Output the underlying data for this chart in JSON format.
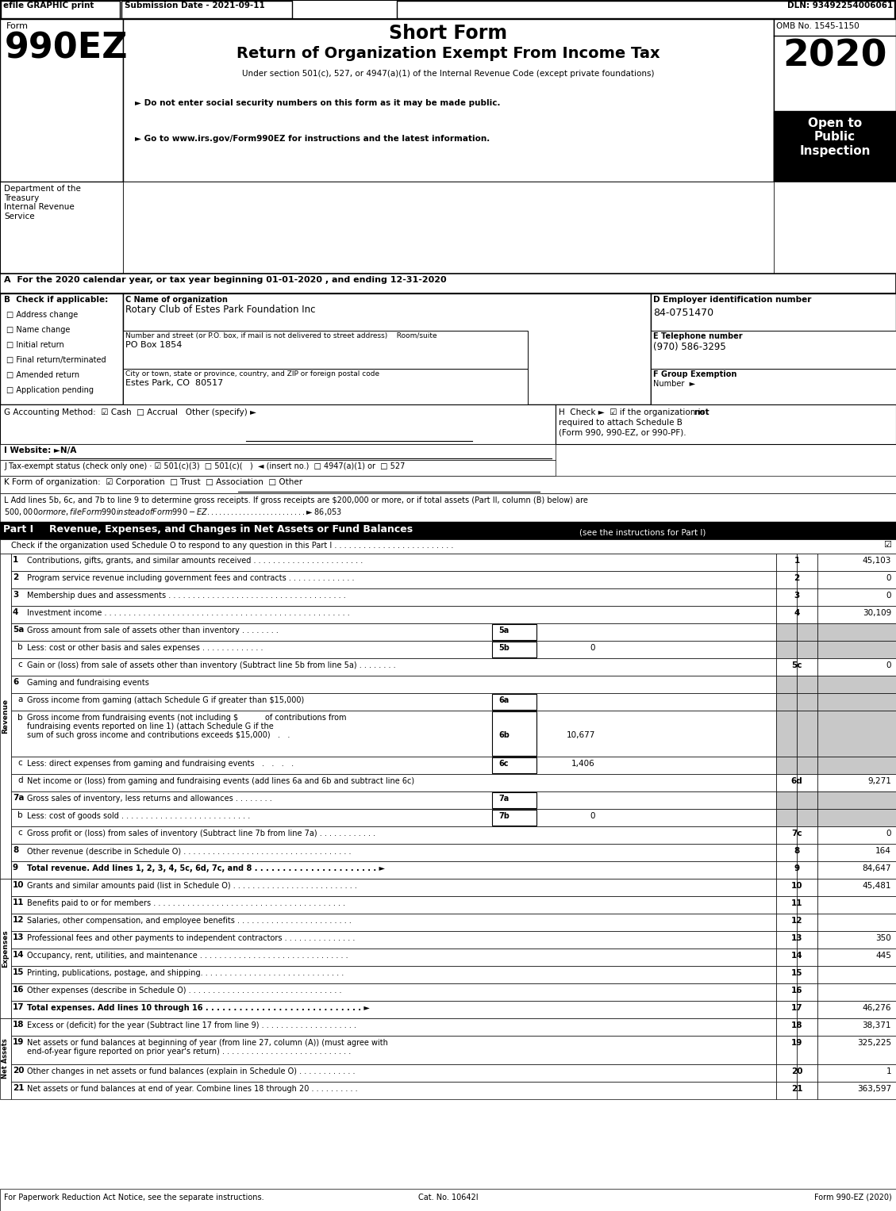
{
  "header_bar": {
    "efile_text": "efile GRAPHIC print",
    "submission_text": "Submission Date - 2021-09-11",
    "dln_text": "DLN: 93492254006061"
  },
  "form_title": {
    "form_label": "Form",
    "form_number": "990EZ",
    "short_form": "Short Form",
    "return_title": "Return of Organization Exempt From Income Tax",
    "under_section": "Under section 501(c), 527, or 4947(a)(1) of the Internal Revenue Code (except private foundations)",
    "bullet1": "► Do not enter social security numbers on this form as it may be made public.",
    "bullet2": "► Go to www.irs.gov/Form990EZ for instructions and the latest information.",
    "year": "2020",
    "omb": "OMB No. 1545-1150",
    "open_to": "Open to\nPublic\nInspection"
  },
  "dept_info": {
    "dept": "Department of the\nTreasury\nInternal Revenue\nService"
  },
  "section_a": {
    "text": "A  For the 2020 calendar year, or tax year beginning 01-01-2020 , and ending 12-31-2020"
  },
  "section_b": {
    "label": "B  Check if applicable:",
    "options": [
      "Address change",
      "Name change",
      "Initial return",
      "Final return/terminated",
      "Amended return",
      "Application pending"
    ]
  },
  "section_c": {
    "label": "C Name of organization",
    "org_name": "Rotary Club of Estes Park Foundation Inc",
    "street_label": "Number and street (or P.O. box, if mail is not delivered to street address)    Room/suite",
    "street": "PO Box 1854",
    "city_label": "City or town, state or province, country, and ZIP or foreign postal code",
    "city": "Estes Park, CO  80517"
  },
  "section_d": {
    "label": "D Employer identification number",
    "ein": "84-0751470"
  },
  "section_e": {
    "label": "E Telephone number",
    "phone": "(970) 586-3295"
  },
  "section_f": {
    "label": "F Group Exemption",
    "label2": "Number  ►"
  },
  "section_g": {
    "text": "G Accounting Method:  ☑ Cash  □ Accrual   Other (specify) ►"
  },
  "section_h": {
    "line1": "H  Check ►  ☑ if the organization is ",
    "bold": "not",
    "line2": "required to attach Schedule B",
    "line3": "(Form 990, 990-EZ, or 990-PF)."
  },
  "section_i": {
    "text": "I Website: ►N/A"
  },
  "section_j": {
    "text": "J Tax-exempt status (check only one) · ☑ 501(c)(3)  □ 501(c)(   )  ◄ (insert no.)  □ 4947(a)(1) or  □ 527"
  },
  "section_k": {
    "text": "K Form of organization:  ☑ Corporation  □ Trust  □ Association  □ Other"
  },
  "section_l": {
    "line1": "L Add lines 5b, 6c, and 7b to line 9 to determine gross receipts. If gross receipts are $200,000 or more, or if total assets (Part II, column (B) below) are",
    "line2": "$500,000 or more, file Form 990 instead of Form 990-EZ . . . . . . . . . . . . . . . . . . . . . . . . . ► $ 86,053"
  },
  "part1_header": "Revenue, Expenses, and Changes in Net Assets or Fund Balances",
  "part1_sub": "(see the instructions for Part I)",
  "part1_check": "Check if the organization used Schedule O to respond to any question in this Part I . . . . . . . . . . . . . . . . . . . . . . . . .",
  "revenue_rows": [
    {
      "num": "1",
      "desc": "Contributions, gifts, grants, and similar amounts received . . . . . . . . . . . . . . . . . . . . . . .",
      "line": "1",
      "val": "45,103",
      "gray": false
    },
    {
      "num": "2",
      "desc": "Program service revenue including government fees and contracts . . . . . . . . . . . . . .",
      "line": "2",
      "val": "0",
      "gray": false
    },
    {
      "num": "3",
      "desc": "Membership dues and assessments . . . . . . . . . . . . . . . . . . . . . . . . . . . . . . . . . . . . .",
      "line": "3",
      "val": "0",
      "gray": false
    },
    {
      "num": "4",
      "desc": "Investment income . . . . . . . . . . . . . . . . . . . . . . . . . . . . . . . . . . . . . . . . . . . . . . . . . . .",
      "line": "4",
      "val": "30,109",
      "gray": false
    }
  ],
  "line5a_desc": "Gross amount from sale of assets other than inventory . . . . . . . .",
  "line5b_desc": "Less: cost or other basis and sales expenses . . . . . . . . . . . . .",
  "line5b_val": "0",
  "line5c_desc": "Gain or (loss) from sale of assets other than inventory (Subtract line 5b from line 5a) . . . . . . . .",
  "line5c_val": "0",
  "line6_header": "Gaming and fundraising events",
  "line6a_desc": "Gross income from gaming (attach Schedule G if greater than $15,000)",
  "line6b_desc1": "Gross income from fundraising events (not including $",
  "line6b_desc2": "of contributions from",
  "line6b_desc3": "fundraising events reported on line 1) (attach Schedule G if the",
  "line6b_desc4": "sum of such gross income and contributions exceeds $15,000)   .   .",
  "line6b_val": "10,677",
  "line6c_desc": "Less: direct expenses from gaming and fundraising events   .   .   .   .",
  "line6c_val": "1,406",
  "line6d_desc": "Net income or (loss) from gaming and fundraising events (add lines 6a and 6b and subtract line 6c)",
  "line6d_val": "9,271",
  "line7a_desc": "Gross sales of inventory, less returns and allowances . . . . . . . .",
  "line7b_desc": "Less: cost of goods sold . . . . . . . . . . . . . . . . . . . . . . . . . . .",
  "line7b_val": "0",
  "line7c_desc": "Gross profit or (loss) from sales of inventory (Subtract line 7b from line 7a) . . . . . . . . . . . .",
  "line7c_val": "0",
  "line8_desc": "Other revenue (describe in Schedule O) . . . . . . . . . . . . . . . . . . . . . . . . . . . . . . . . . . .",
  "line8_val": "164",
  "line9_desc": "Total revenue. Add lines 1, 2, 3, 4, 5c, 6d, 7c, and 8 . . . . . . . . . . . . . . . . . . . . . . ►",
  "line9_val": "84,647",
  "expense_rows": [
    {
      "num": "10",
      "desc": "Grants and similar amounts paid (list in Schedule O) . . . . . . . . . . . . . . . . . . . . . . . . . .",
      "line": "10",
      "val": "45,481"
    },
    {
      "num": "11",
      "desc": "Benefits paid to or for members . . . . . . . . . . . . . . . . . . . . . . . . . . . . . . . . . . . . . . . .",
      "line": "11",
      "val": ""
    },
    {
      "num": "12",
      "desc": "Salaries, other compensation, and employee benefits . . . . . . . . . . . . . . . . . . . . . . . .",
      "line": "12",
      "val": ""
    },
    {
      "num": "13",
      "desc": "Professional fees and other payments to independent contractors . . . . . . . . . . . . . . .",
      "line": "13",
      "val": "350"
    },
    {
      "num": "14",
      "desc": "Occupancy, rent, utilities, and maintenance . . . . . . . . . . . . . . . . . . . . . . . . . . . . . . .",
      "line": "14",
      "val": "445"
    },
    {
      "num": "15",
      "desc": "Printing, publications, postage, and shipping. . . . . . . . . . . . . . . . . . . . . . . . . . . . . .",
      "line": "15",
      "val": ""
    },
    {
      "num": "16",
      "desc": "Other expenses (describe in Schedule O) . . . . . . . . . . . . . . . . . . . . . . . . . . . . . . . .",
      "line": "16",
      "val": ""
    }
  ],
  "line17_desc": "Total expenses. Add lines 10 through 16 . . . . . . . . . . . . . . . . . . . . . . . . . . . . ►",
  "line17_val": "46,276",
  "net_assets_rows": [
    {
      "num": "18",
      "desc": "Excess or (deficit) for the year (Subtract line 17 from line 9) . . . . . . . . . . . . . . . . . . . .",
      "line": "18",
      "val": "38,371",
      "twolines": false
    },
    {
      "num": "19",
      "desc1": "Net assets or fund balances at beginning of year (from line 27, column (A)) (must agree with",
      "desc2": "end-of-year figure reported on prior year's return) . . . . . . . . . . . . . . . . . . . . . . . . . . .",
      "line": "19",
      "val": "325,225",
      "twolines": true
    },
    {
      "num": "20",
      "desc": "Other changes in net assets or fund balances (explain in Schedule O) . . . . . . . . . . . .",
      "line": "20",
      "val": "1",
      "twolines": false
    },
    {
      "num": "21",
      "desc": "Net assets or fund balances at end of year. Combine lines 18 through 20 . . . . . . . . . .",
      "line": "21",
      "val": "363,597",
      "twolines": false
    }
  ],
  "footer": {
    "left": "For Paperwork Reduction Act Notice, see the separate instructions.",
    "cat": "Cat. No. 10642I",
    "right": "Form 990-EZ (2020)"
  }
}
